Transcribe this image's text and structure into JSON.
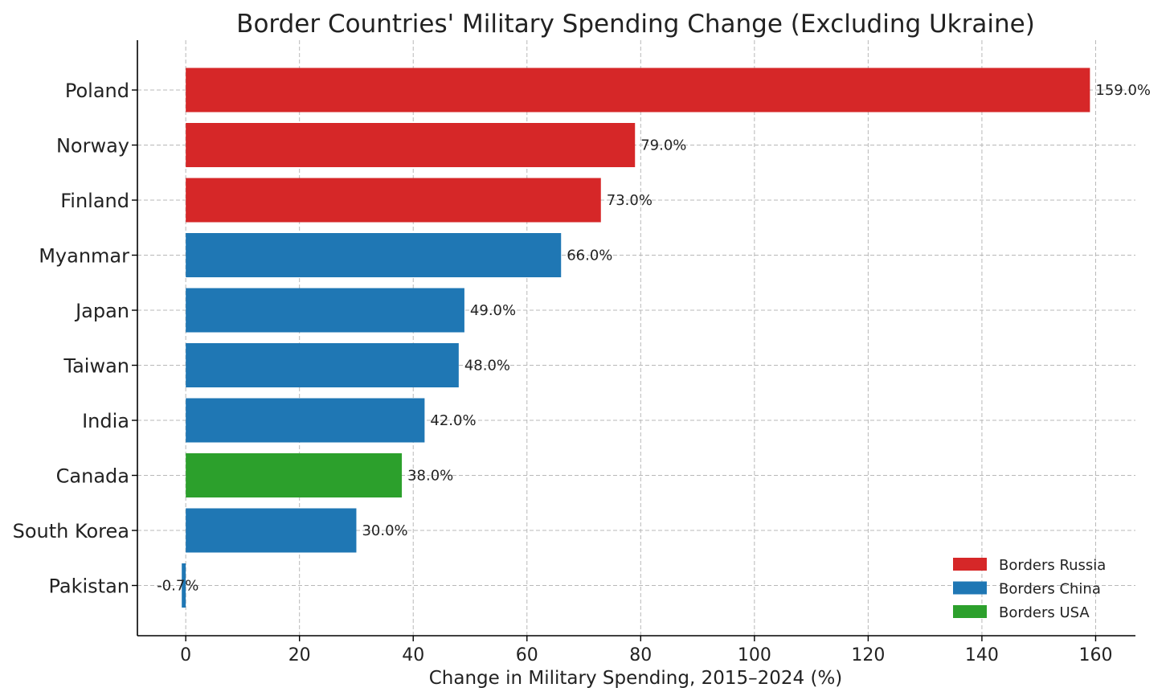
{
  "chart_data": {
    "type": "bar",
    "orientation": "horizontal",
    "title": "Border Countries' Military Spending Change (Excluding Ukraine)",
    "xlabel": "Change in Military Spending, 2015–2024 (%)",
    "ylabel": "",
    "xlim": [
      -8.5,
      167
    ],
    "xticks": [
      0,
      20,
      40,
      60,
      80,
      100,
      120,
      140,
      160
    ],
    "grid": true,
    "legend_position": "bottom-right",
    "categories": [
      "Poland",
      "Norway",
      "Finland",
      "Myanmar",
      "Japan",
      "Taiwan",
      "India",
      "Canada",
      "South Korea",
      "Pakistan"
    ],
    "values": [
      159.0,
      79.0,
      73.0,
      66.0,
      49.0,
      48.0,
      42.0,
      38.0,
      30.0,
      -0.7
    ],
    "data_labels": [
      "159.0%",
      "79.0%",
      "73.0%",
      "66.0%",
      "49.0%",
      "48.0%",
      "42.0%",
      "38.0%",
      "30.0%",
      "-0.7%"
    ],
    "groups": [
      "Borders Russia",
      "Borders Russia",
      "Borders Russia",
      "Borders China",
      "Borders China",
      "Borders China",
      "Borders China",
      "Borders USA",
      "Borders China",
      "Borders China"
    ],
    "legend": [
      {
        "name": "Borders Russia",
        "color": "#d62728"
      },
      {
        "name": "Borders China",
        "color": "#1f77b4"
      },
      {
        "name": "Borders USA",
        "color": "#2ca02c"
      }
    ]
  }
}
